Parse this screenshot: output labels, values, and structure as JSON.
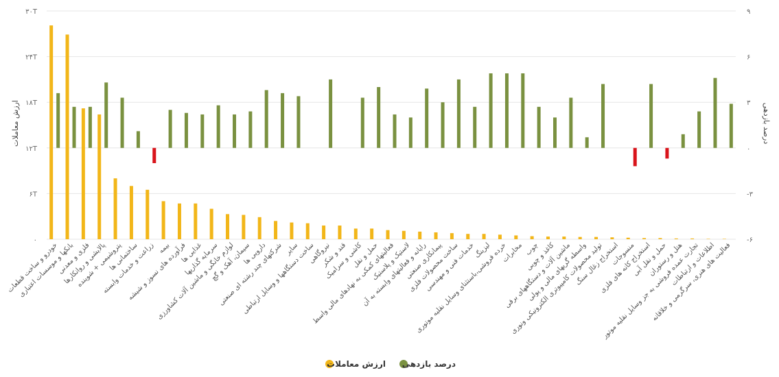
{
  "chart_data": {
    "type": "bar",
    "direction": "rtl",
    "y_left_label": "ارزش معاملات",
    "y_right_label": "درصد بازدهی",
    "y_left_ticks": [
      "۰",
      "۶T",
      "۱۲T",
      "۱۸T",
      "۲۴T",
      "۳۰T"
    ],
    "y_left_ticks_values": [
      0,
      6,
      12,
      18,
      24,
      30
    ],
    "y_left_range": [
      0,
      30
    ],
    "y_right_ticks": [
      "-۶",
      "-۳",
      "۰",
      "۳",
      "۶",
      "۹"
    ],
    "y_right_ticks_values": [
      -6,
      -3,
      0,
      3,
      6,
      9
    ],
    "y_right_range": [
      -6,
      9
    ],
    "colors": {
      "value": "#F2B619",
      "return_pos": "#7A9140",
      "return_neg": "#D9141B",
      "tick": "#666666",
      "grid": "#E6E6E6"
    },
    "categories": [
      "خودرو و ساخت قطعات",
      "بانکها و موسسات اعتباری",
      "فلزی و معدنی",
      "پالایشی و روانکارها",
      "پتروشیمی + شوینده",
      "ساختمانی ها",
      "زراعت و خدمات وابسته",
      "بیمه",
      "فرآورده های نسوز و شیشه",
      "غذایی ها",
      "سرمایه گذاریها",
      "لوازم خانگی و ماشین آلات کشاورزی",
      "سیمان، آهک و گچ",
      "دارویی ها",
      "شرکتهای چند رشته ای صنعتی",
      "سایر",
      "ساخت دستگاهها و وسایل ارتباطی",
      "نیروگاهی",
      "قند و شکر",
      "کاشی و سرامیک",
      "حمل و نقل",
      "فعالیتهای کمکی به نهادهای مالی واسط",
      "لاستیک و پلاستیک",
      "رایانه و فعالیتهای وابسته به آن",
      "پیمانکاری صنعتی",
      "ساخت محصولات فلزی",
      "خدمات فنی و مهندسی",
      "لیزینگ",
      "خرده فروشی،باستثنای وسایل نقلیه موتوری",
      "مخابرات",
      "چوب",
      "کاغذ و چوبی",
      "ماشین آلات و دستگاههای برقی",
      "واسطه گریهای مالی و پولی",
      "تولید محصولات کامپیوتری الکترونیکی ونوری",
      "استخراج زغال سنگ",
      "منسوجات",
      "استخراج کانه های فلزی",
      "حمل و نقل آبی",
      "هتل و رستوران",
      "تجارت عمده فروشی به جز وسایل نقلیه موتور",
      "اطلاعات و ارتباطات",
      "فعالیت های هنری، سرگرمی و خلاقانه"
    ],
    "series": [
      {
        "name": "ارزش معاملات",
        "unit": "T",
        "values": [
          28.1,
          26.9,
          17.2,
          16.4,
          8.0,
          7.0,
          6.5,
          5.0,
          4.7,
          4.7,
          4.0,
          3.3,
          3.2,
          2.9,
          2.4,
          2.2,
          2.1,
          1.8,
          1.8,
          1.4,
          1.4,
          1.2,
          1.1,
          1.0,
          0.9,
          0.8,
          0.7,
          0.7,
          0.6,
          0.5,
          0.4,
          0.35,
          0.35,
          0.3,
          0.3,
          0.25,
          0.2,
          0.15,
          0.15,
          0.1,
          0.1,
          0.05,
          0.05
        ]
      },
      {
        "name": "درصد بازدهی",
        "unit": "%",
        "values": [
          3.6,
          2.7,
          2.7,
          4.3,
          3.3,
          1.1,
          -1.0,
          2.5,
          2.3,
          2.2,
          2.8,
          2.2,
          2.4,
          3.8,
          3.6,
          3.4,
          0.0,
          4.5,
          0.0,
          3.3,
          4.0,
          2.2,
          2.0,
          3.9,
          3.0,
          4.5,
          2.7,
          4.9,
          4.9,
          4.9,
          2.7,
          2.0,
          3.3,
          0.7,
          4.2,
          0.0,
          -1.2,
          4.2,
          -0.7,
          0.9,
          2.4,
          4.6,
          2.9
        ]
      }
    ],
    "legend": [
      {
        "label": "درصد بازدهی",
        "color": "#7A9140"
      },
      {
        "label": "ارزش معاملات",
        "color": "#F2B619"
      }
    ],
    "legend_position": "bottom-center"
  }
}
